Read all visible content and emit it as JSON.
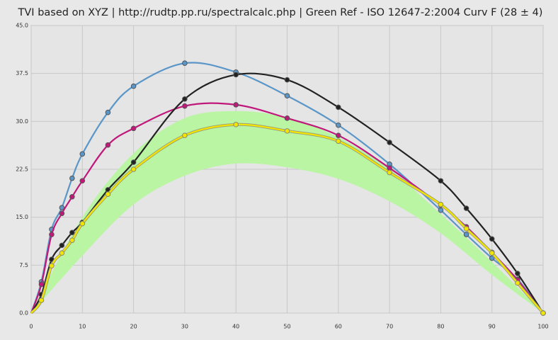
{
  "chart_data": {
    "type": "line",
    "title": "TVI based on XYZ  |  http://rudtp.pp.ru/spectralcalc.php  |  Green Ref - ISO 12647-2:2004 Curv F (28 ± 4)",
    "x": [
      0,
      2,
      4,
      6,
      8,
      10,
      15,
      20,
      30,
      40,
      50,
      60,
      70,
      80,
      85,
      90,
      95,
      100
    ],
    "series": [
      {
        "color": "#5a96c8",
        "values": [
          0,
          4.9,
          13.1,
          16.5,
          21.1,
          24.9,
          31.4,
          35.5,
          39.1,
          37.7,
          34.0,
          29.4,
          23.3,
          16.1,
          12.3,
          8.6,
          5.3,
          0
        ]
      },
      {
        "color": "#c0187a",
        "values": [
          0,
          4.5,
          12.3,
          15.6,
          18.2,
          20.7,
          26.3,
          28.9,
          32.4,
          32.6,
          30.5,
          27.8,
          22.7,
          16.9,
          13.5,
          9.5,
          5.2,
          0
        ]
      },
      {
        "color": "#222222",
        "values": [
          0,
          2.9,
          8.4,
          10.6,
          12.6,
          14.2,
          19.3,
          23.6,
          33.5,
          37.3,
          36.5,
          32.2,
          26.7,
          20.7,
          16.4,
          11.6,
          6.2,
          0
        ]
      },
      {
        "color": "#f2e600",
        "values": [
          0,
          2.0,
          7.4,
          9.4,
          11.4,
          14.0,
          18.6,
          22.5,
          27.8,
          29.5,
          28.5,
          26.9,
          22.0,
          17.0,
          13.2,
          9.4,
          4.7,
          0
        ]
      }
    ],
    "band": {
      "color": "#b9f5a2",
      "x": [
        0,
        10,
        20,
        30,
        40,
        50,
        60,
        70,
        80,
        90,
        100
      ],
      "upper": [
        0,
        15,
        25,
        30.5,
        31.6,
        30.6,
        27.5,
        22.5,
        15.5,
        8,
        0
      ],
      "lower": [
        0,
        9,
        17,
        21.5,
        23.4,
        22.8,
        21,
        17.5,
        12.5,
        6,
        0
      ]
    },
    "xlim": [
      0,
      100
    ],
    "xticks": [
      0,
      10,
      20,
      30,
      40,
      50,
      60,
      70,
      80,
      90,
      100
    ],
    "ylim": [
      0,
      45
    ],
    "yticks": [
      {
        "value": 0,
        "label": "0.0"
      },
      {
        "value": 7.5,
        "label": "7.5"
      },
      {
        "value": 15,
        "label": "15.0"
      },
      {
        "value": 22.5,
        "label": "22.5"
      },
      {
        "value": 30,
        "label": "30.0"
      },
      {
        "value": 37.5,
        "label": "37.5"
      },
      {
        "value": 45,
        "label": "45.0"
      }
    ],
    "grid": true
  }
}
